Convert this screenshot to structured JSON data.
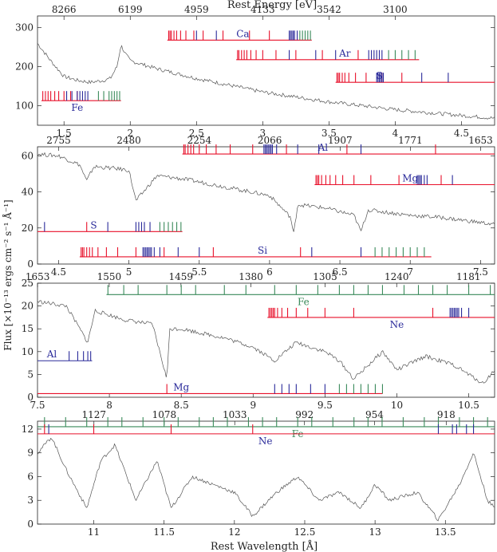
{
  "figure": {
    "top_axis_title": "Rest Energy [eV]",
    "bottom_axis_title": "Rest Wavelength [Å]",
    "y_axis_title": "Flux [×10⁻¹³ ergs cm⁻² s⁻¹ Å⁻¹]"
  },
  "colors": {
    "red": "#e8102a",
    "blue": "#2a2a9a",
    "green": "#3a8a5a",
    "spectrum": "#555555"
  },
  "chart_data": [
    {
      "type": "line",
      "panel": 1,
      "xlim": [
        1.3,
        4.75
      ],
      "ylim": [
        50,
        330
      ],
      "y_ticks": [
        "100",
        "200",
        "300"
      ],
      "x_ticks": [
        "1.5",
        "2",
        "2.5",
        "3",
        "3.5",
        "4",
        "4.5"
      ],
      "top_ticks": [
        "8266",
        "6199",
        "4959",
        "4133",
        "3542",
        "3100"
      ],
      "spectrum": {
        "x": [
          1.3,
          1.4,
          1.5,
          1.6,
          1.7,
          1.8,
          1.85,
          1.9,
          1.93,
          1.96,
          2.0,
          2.2,
          2.5,
          3.0,
          3.5,
          4.0,
          4.5,
          4.75
        ],
        "y": [
          260,
          215,
          175,
          165,
          160,
          165,
          170,
          200,
          255,
          235,
          215,
          195,
          170,
          135,
          110,
          90,
          75,
          68
        ]
      },
      "ion_series": [
        {
          "label": "Ca",
          "y": 268,
          "x_start": 2.28,
          "x_end": 3.37,
          "label_x": 2.85,
          "label_side": "above",
          "red": [
            2.29,
            2.3,
            2.31,
            2.33,
            2.35,
            2.38,
            2.42,
            2.48,
            2.55,
            2.7,
            2.9,
            3.05
          ],
          "blue": [
            2.5,
            2.65,
            3.2,
            3.21,
            3.22,
            3.23,
            3.24,
            3.26
          ],
          "green": [
            3.28,
            3.3,
            3.32,
            3.34,
            3.36
          ]
        },
        {
          "label": "Ar",
          "y": 218,
          "x_start": 2.8,
          "x_end": 4.18,
          "label_x": 3.62,
          "label_side": "above",
          "red": [
            2.81,
            2.82,
            2.84,
            2.86,
            2.88,
            2.91,
            2.95,
            3.0,
            3.1,
            3.25,
            3.45,
            3.72
          ],
          "blue": [
            3.2,
            3.4,
            3.55,
            3.8,
            3.82,
            3.84,
            3.86,
            3.88,
            3.9
          ],
          "green": [
            3.95,
            4.0,
            4.05,
            4.1,
            4.15
          ]
        },
        {
          "label": "S",
          "y": 160,
          "x_start": 3.55,
          "x_end": 4.75,
          "label_x": 3.88,
          "label_side": "above",
          "red": [
            3.56,
            3.57,
            3.58,
            3.6,
            3.62,
            3.65,
            3.7,
            3.78,
            3.9,
            4.05
          ],
          "blue": [
            3.86,
            3.87,
            3.88,
            3.89,
            3.9,
            3.91,
            4.2,
            4.4
          ]
        },
        {
          "label": "Fe",
          "y": 113,
          "x_start": 1.33,
          "x_end": 1.93,
          "label_x": 1.6,
          "label_side": "below",
          "red": [
            1.34,
            1.36,
            1.38,
            1.4,
            1.43,
            1.46,
            1.5,
            1.55,
            1.6
          ],
          "blue": [
            1.52,
            1.56,
            1.6,
            1.62,
            1.64,
            1.66,
            1.68
          ],
          "green": [
            1.76,
            1.8,
            1.84,
            1.86,
            1.88,
            1.9,
            1.92
          ]
        }
      ]
    },
    {
      "type": "line",
      "panel": 2,
      "xlim": [
        4.35,
        7.6
      ],
      "ylim": [
        0,
        65
      ],
      "y_ticks": [
        "0",
        "20",
        "40",
        "60"
      ],
      "x_ticks": [
        "4.5",
        "5",
        "5.5",
        "6",
        "6.5",
        "7",
        "7.5"
      ],
      "top_ticks": [
        "2755",
        "2480",
        "2254",
        "2066",
        "1907",
        "1771",
        "1653"
      ],
      "spectrum": {
        "x": [
          4.35,
          4.5,
          4.65,
          4.7,
          4.75,
          4.9,
          5.0,
          5.05,
          5.2,
          5.4,
          5.6,
          5.8,
          6.0,
          6.15,
          6.17,
          6.2,
          6.4,
          6.6,
          6.65,
          6.7,
          7.0,
          7.2,
          7.6
        ],
        "y": [
          61,
          60,
          55,
          46,
          54,
          53,
          52,
          35,
          49,
          47,
          44,
          41,
          38,
          26,
          16,
          33,
          31,
          27,
          18,
          30,
          27,
          26,
          22
        ]
      },
      "ion_series": [
        {
          "label": "Al",
          "y": 61,
          "x_start": 5.38,
          "x_end": 7.6,
          "label_x": 6.38,
          "label_side": "above",
          "red": [
            5.39,
            5.4,
            5.42,
            5.44,
            5.46,
            5.5,
            5.55,
            5.62,
            5.72,
            5.88,
            6.12,
            6.55,
            7.18
          ],
          "blue": [
            5.96,
            5.97,
            5.98,
            5.99,
            6.0,
            6.01,
            6.02,
            6.05,
            6.2,
            6.35,
            6.65
          ]
        },
        {
          "label": "Mg",
          "y": 44,
          "x_start": 6.32,
          "x_end": 7.6,
          "label_x": 7.0,
          "label_side": "above",
          "red": [
            6.33,
            6.34,
            6.35,
            6.37,
            6.4,
            6.43,
            6.47,
            6.52,
            6.6,
            6.72,
            6.92,
            7.22
          ],
          "blue": [
            7.05,
            7.06,
            7.07,
            7.08,
            7.1,
            7.12,
            7.3
          ]
        },
        {
          "label": "S",
          "y": 18,
          "x_start": 4.35,
          "x_end": 5.38,
          "label_x": 4.75,
          "label_side": "above",
          "red": [
            4.7
          ],
          "blue": [
            4.4,
            4.85,
            5.05,
            5.07,
            5.09,
            5.11,
            5.15
          ],
          "green": [
            5.22,
            5.25,
            5.28,
            5.31,
            5.34,
            5.37
          ]
        },
        {
          "label": "Si",
          "y": 4,
          "x_start": 4.65,
          "x_end": 7.15,
          "label_x": 5.95,
          "label_side": "above",
          "red": [
            4.66,
            4.67,
            4.68,
            4.7,
            4.72,
            4.74,
            4.78,
            4.84,
            4.92,
            5.05,
            5.25,
            5.6,
            6.22
          ],
          "blue": [
            5.1,
            5.11,
            5.12,
            5.13,
            5.14,
            5.15,
            5.16,
            5.18,
            5.22,
            5.35,
            5.5,
            6.3,
            6.65
          ],
          "green": [
            6.75,
            6.8,
            6.85,
            6.9,
            6.95,
            7.0,
            7.05,
            7.1
          ]
        }
      ]
    },
    {
      "type": "line",
      "panel": 3,
      "xlim": [
        7.5,
        10.68
      ],
      "ylim": [
        0,
        25
      ],
      "y_ticks": [
        "0",
        "5",
        "10",
        "15",
        "20",
        "25"
      ],
      "x_ticks": [
        "7.5",
        "8",
        "8.5",
        "9",
        "9.5",
        "10",
        "10.5"
      ],
      "top_ticks": [
        "1653",
        "1550",
        "1459",
        "1380",
        "1305",
        "1240",
        "1181"
      ],
      "spectrum": {
        "x": [
          7.5,
          7.7,
          7.85,
          7.9,
          8.1,
          8.3,
          8.4,
          8.42,
          8.5,
          8.8,
          9.0,
          9.15,
          9.3,
          9.5,
          9.6,
          9.7,
          9.9,
          10.0,
          10.2,
          10.4,
          10.6,
          10.68
        ],
        "y": [
          21,
          20,
          12,
          19,
          17,
          16,
          4,
          15,
          15,
          13,
          11,
          8,
          12,
          10,
          8,
          4,
          10,
          6,
          9,
          7,
          3,
          6
        ]
      },
      "ion_series": [
        {
          "label": "Fe",
          "y": 22.5,
          "x_start": 7.98,
          "x_end": 10.68,
          "label_x": 9.35,
          "label_side": "below",
          "green": [
            7.99,
            8.1,
            8.2,
            8.4,
            8.5,
            8.6,
            8.8,
            8.95,
            9.15,
            9.3,
            9.45,
            9.6,
            9.7,
            9.8,
            9.9,
            10.05,
            10.15,
            10.25,
            10.35,
            10.5,
            10.65
          ]
        },
        {
          "label": "Ne",
          "y": 17.5,
          "x_start": 9.1,
          "x_end": 10.68,
          "label_x": 10.0,
          "label_side": "below",
          "red": [
            9.11,
            9.12,
            9.13,
            9.14,
            9.15,
            9.17,
            9.2,
            9.24,
            9.3,
            9.38,
            9.5,
            9.7,
            10.25
          ],
          "blue": [
            10.37,
            10.38,
            10.39,
            10.4,
            10.41,
            10.42,
            10.43,
            10.45,
            10.5
          ]
        },
        {
          "label": "Al",
          "y": 8,
          "x_start": 7.5,
          "x_end": 7.88,
          "label_x": 7.6,
          "label_side": "above",
          "blue": [
            7.72,
            7.78,
            7.82,
            7.85,
            7.87
          ]
        },
        {
          "label": "Mg",
          "y": 0.8,
          "x_start": 7.5,
          "x_end": 9.9,
          "label_x": 8.5,
          "label_side": "above",
          "red": [
            8.4
          ],
          "blue": [
            9.15,
            9.2,
            9.25,
            9.3,
            9.4,
            9.5
          ],
          "green": [
            9.6,
            9.65,
            9.7,
            9.75,
            9.8,
            9.85,
            9.9
          ]
        }
      ]
    },
    {
      "type": "line",
      "panel": 4,
      "xlim": [
        10.6,
        13.85
      ],
      "ylim": [
        0,
        13
      ],
      "y_ticks": [
        "0",
        "3",
        "6",
        "9",
        "12"
      ],
      "x_ticks": [
        "11",
        "11.5",
        "12",
        "12.5",
        "13",
        "13.5"
      ],
      "top_ticks": [
        "1127",
        "1078",
        "1033",
        "992",
        "954",
        "918"
      ],
      "spectrum": {
        "x": [
          10.6,
          10.7,
          10.8,
          10.95,
          11.05,
          11.15,
          11.3,
          11.45,
          11.55,
          11.7,
          11.85,
          12.0,
          12.13,
          12.3,
          12.45,
          12.6,
          12.75,
          12.9,
          13.0,
          13.1,
          13.3,
          13.45,
          13.6,
          13.7,
          13.8,
          13.85
        ],
        "y": [
          9,
          11,
          7,
          2,
          8,
          10,
          3,
          8,
          2,
          6,
          5,
          4,
          1,
          4,
          6,
          3,
          4,
          2,
          5,
          3,
          4,
          0.5,
          5,
          9,
          3,
          2
        ]
      },
      "ion_series": [
        {
          "label": "Fe",
          "y": 12.3,
          "x_start": 10.6,
          "x_end": 13.85,
          "label_x": 12.45,
          "label_side": "below",
          "green": [
            10.65,
            10.8,
            10.95,
            11.1,
            11.2,
            11.35,
            11.5,
            11.6,
            11.75,
            11.85,
            11.95,
            12.1,
            12.2,
            12.3,
            12.45,
            12.55,
            12.7,
            12.85,
            12.95,
            13.05,
            13.2,
            13.35,
            13.45,
            13.6,
            13.7,
            13.8
          ]
        },
        {
          "label": "Ne",
          "y": 11.4,
          "x_start": 10.6,
          "x_end": 13.85,
          "label_x": 12.22,
          "label_side": "below",
          "red": [
            10.65,
            11.0,
            11.55,
            12.13
          ],
          "blue": [
            10.68,
            13.45,
            13.55,
            13.58,
            13.65,
            13.7
          ]
        }
      ]
    }
  ]
}
